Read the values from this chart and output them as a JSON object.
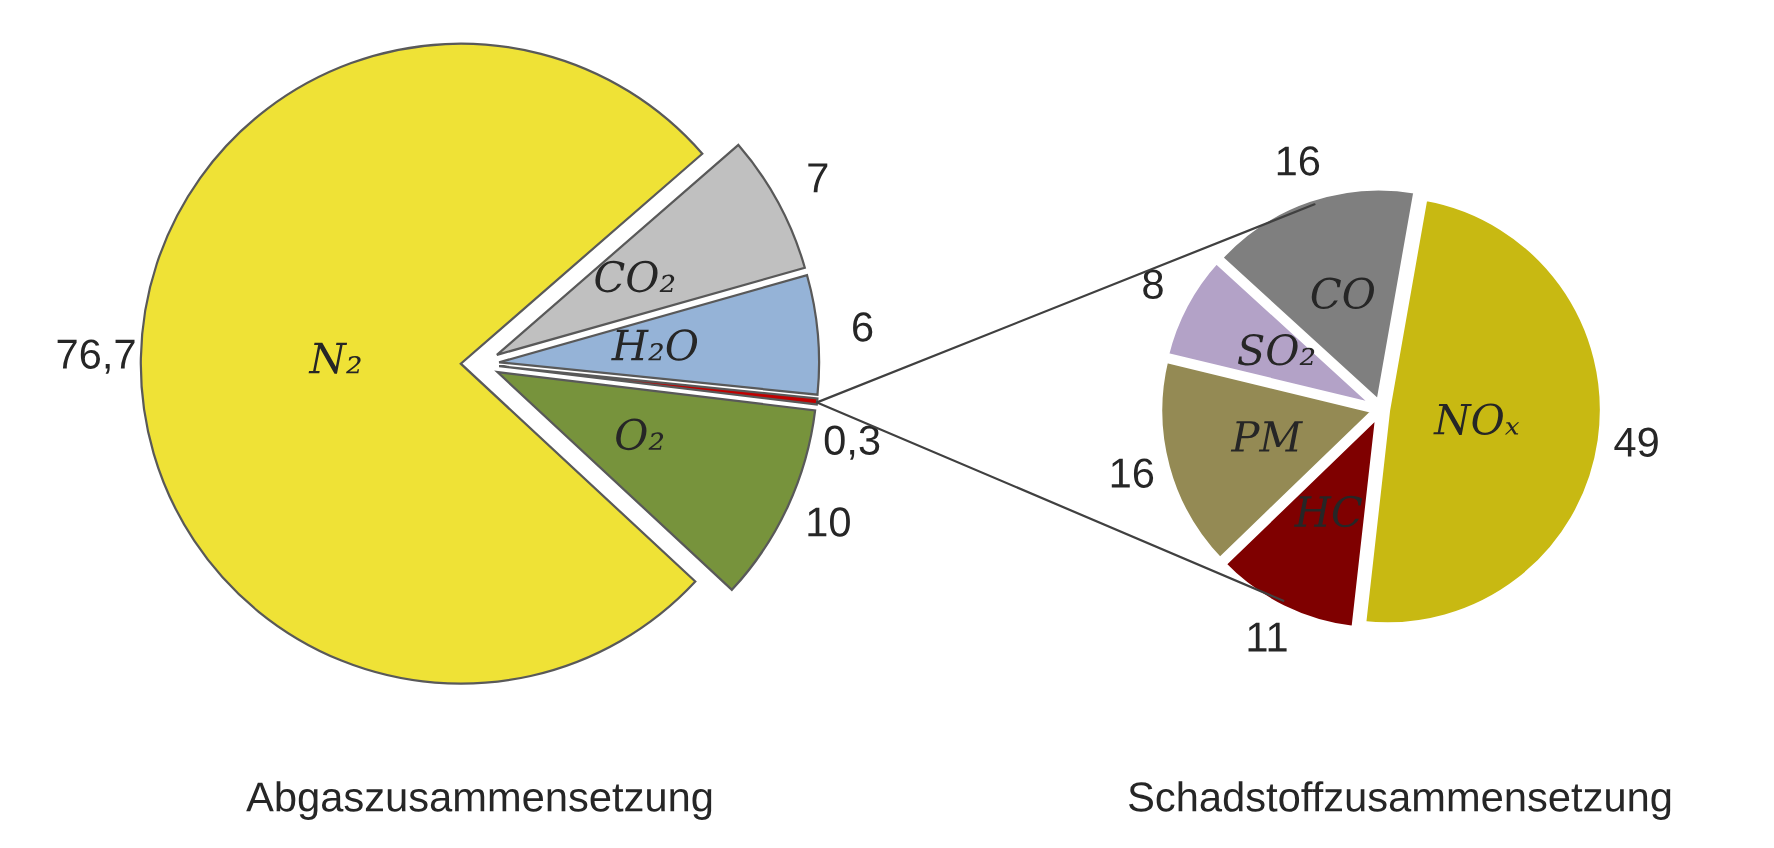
{
  "chart_data": [
    {
      "type": "pie",
      "title": "Abgaszusammensetzung",
      "categories": [
        "CO₂",
        "H₂O",
        null,
        "O₂",
        "N₂"
      ],
      "values": [
        7,
        6,
        0.3,
        10,
        76.7
      ],
      "colors": [
        "#c0c0c0",
        "#95b3d7",
        "#c00000",
        "#77933c",
        "#efe236"
      ],
      "value_labels": [
        "7",
        "6",
        "0,3",
        "10",
        "76,7"
      ]
    },
    {
      "type": "pie",
      "title": "Schadstoffzusammensetzung",
      "categories": [
        "NOₓ",
        "HC",
        "PM",
        "SO₂",
        "CO"
      ],
      "values": [
        49,
        11,
        16,
        8,
        16
      ],
      "colors": [
        "#c8b912",
        "#7f0000",
        "#948a54",
        "#b3a2c7",
        "#7f7f7f"
      ],
      "value_labels": [
        "49",
        "11",
        "16",
        "8",
        "16"
      ]
    }
  ]
}
